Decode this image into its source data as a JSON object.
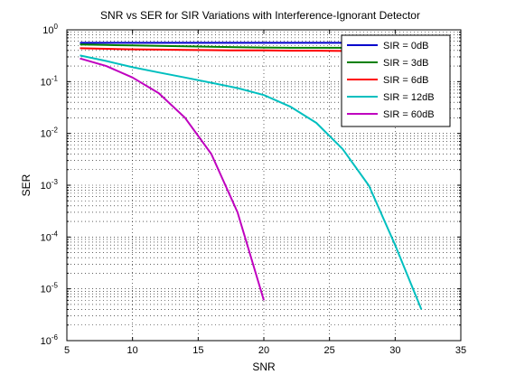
{
  "chart_data": {
    "type": "line",
    "title": "SNR vs SER for SIR Variations with Interference-Ignorant Detector",
    "xlabel": "SNR",
    "ylabel": "SER",
    "xlim": [
      5,
      35
    ],
    "ylim": [
      1e-06,
      1
    ],
    "yscale": "log",
    "grid": true,
    "grid_minor": true,
    "legend_position": "top-right",
    "x_ticks": [
      5,
      10,
      15,
      20,
      25,
      30,
      35
    ],
    "x_tick_labels": [
      "5",
      "10",
      "15",
      "20",
      "25",
      "30",
      "35"
    ],
    "y_ticks": [
      1e-06,
      1e-05,
      0.0001,
      0.001,
      0.01,
      0.1,
      1
    ],
    "y_tick_labels": [
      {
        "base": "10",
        "exp": "-6"
      },
      {
        "base": "10",
        "exp": "-5"
      },
      {
        "base": "10",
        "exp": "-4"
      },
      {
        "base": "10",
        "exp": "-3"
      },
      {
        "base": "10",
        "exp": "-2"
      },
      {
        "base": "10",
        "exp": "-1"
      },
      {
        "base": "10",
        "exp": "0"
      }
    ],
    "series": [
      {
        "name": "SIR = 0dB",
        "color": "#0000cc",
        "x": [
          6,
          8,
          10,
          12,
          14,
          16,
          18,
          20,
          22,
          24,
          26,
          28,
          30,
          32
        ],
        "y": [
          0.56,
          0.56,
          0.56,
          0.56,
          0.56,
          0.56,
          0.56,
          0.56,
          0.56,
          0.56,
          0.56,
          0.56,
          0.56,
          0.56
        ]
      },
      {
        "name": "SIR = 3dB",
        "color": "#008000",
        "x": [
          6,
          8,
          10,
          12,
          14,
          16,
          18,
          20,
          22,
          24,
          26,
          28,
          30,
          32
        ],
        "y": [
          0.52,
          0.51,
          0.5,
          0.49,
          0.48,
          0.47,
          0.46,
          0.455,
          0.45,
          0.45,
          0.45,
          0.45,
          0.45,
          0.45
        ]
      },
      {
        "name": "SIR = 6dB",
        "color": "#ff0000",
        "x": [
          6,
          8,
          10,
          12,
          14,
          16,
          18,
          20,
          22,
          24,
          26,
          28,
          30,
          32
        ],
        "y": [
          0.44,
          0.43,
          0.42,
          0.415,
          0.41,
          0.405,
          0.4,
          0.4,
          0.395,
          0.395,
          0.39,
          0.39,
          0.39,
          0.39
        ]
      },
      {
        "name": "SIR = 12dB",
        "color": "#00bfbf",
        "x": [
          6,
          8,
          10,
          12,
          14,
          16,
          18,
          20,
          22,
          24,
          26,
          28,
          30,
          32
        ],
        "y": [
          0.32,
          0.25,
          0.19,
          0.15,
          0.12,
          0.095,
          0.075,
          0.055,
          0.033,
          0.016,
          0.005,
          0.00098,
          7e-05,
          4e-06
        ]
      },
      {
        "name": "SIR = 60dB",
        "color": "#bf00bf",
        "x": [
          6,
          8,
          10,
          12,
          14,
          16,
          18,
          20
        ],
        "y": [
          0.28,
          0.2,
          0.12,
          0.06,
          0.02,
          0.004,
          0.0003,
          6e-06
        ]
      }
    ]
  }
}
